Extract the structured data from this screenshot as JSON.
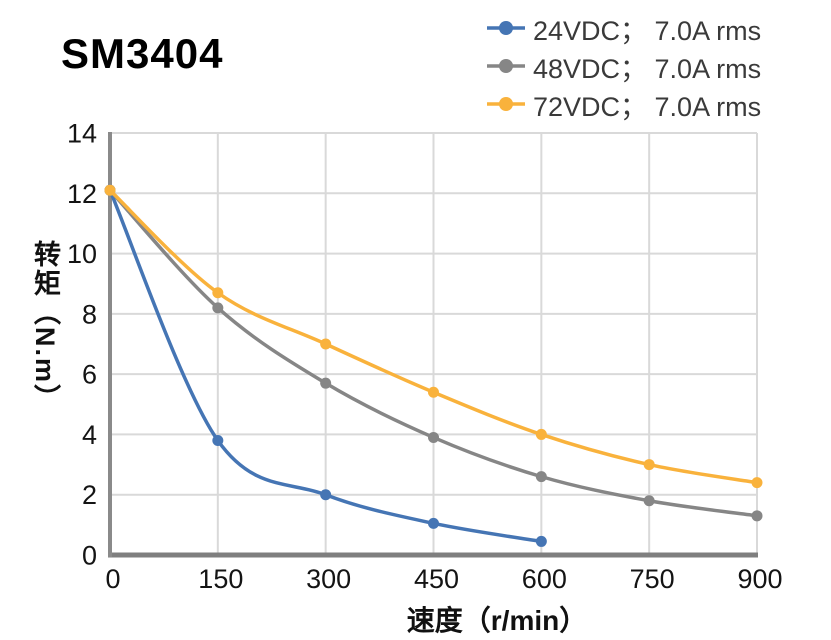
{
  "title": "SM3404",
  "colors": {
    "series_24vdc": "#4575B4",
    "series_48vdc": "#868686",
    "series_72vdc": "#F9B23C",
    "gridline": "#D9D9D9",
    "axis_line": "#8A8A8A",
    "bottom_axis_line": "#7F7F7F",
    "tick_text": "#141414",
    "legend_text": "#3A3A3A",
    "title_text": "#000000",
    "background": "#FFFFFF"
  },
  "chart_data": {
    "type": "line",
    "title": "SM3404",
    "xlabel": "速度（r/min）",
    "ylabel": "转矩（N.m）",
    "xlim": [
      0,
      900
    ],
    "ylim": [
      0,
      14
    ],
    "x_ticks": [
      0,
      150,
      300,
      450,
      600,
      750,
      900
    ],
    "y_ticks": [
      0,
      2,
      4,
      6,
      8,
      10,
      12,
      14
    ],
    "grid": true,
    "smooth": true,
    "markers": true,
    "legend_position": "top-right",
    "series": [
      {
        "name": "24VDC； 7.0A rms",
        "color": "#4575B4",
        "points": [
          [
            0,
            12.1
          ],
          [
            150,
            3.8
          ],
          [
            300,
            2.0
          ],
          [
            450,
            1.05
          ],
          [
            600,
            0.45
          ]
        ]
      },
      {
        "name": "48VDC； 7.0A rms",
        "color": "#868686",
        "points": [
          [
            0,
            12.1
          ],
          [
            150,
            8.2
          ],
          [
            300,
            5.7
          ],
          [
            450,
            3.9
          ],
          [
            600,
            2.6
          ],
          [
            750,
            1.8
          ],
          [
            900,
            1.3
          ]
        ]
      },
      {
        "name": "72VDC； 7.0A rms",
        "color": "#F9B23C",
        "points": [
          [
            0,
            12.1
          ],
          [
            150,
            8.7
          ],
          [
            300,
            7.0
          ],
          [
            450,
            5.4
          ],
          [
            600,
            4.0
          ],
          [
            750,
            3.0
          ],
          [
            900,
            2.4
          ]
        ]
      }
    ]
  }
}
